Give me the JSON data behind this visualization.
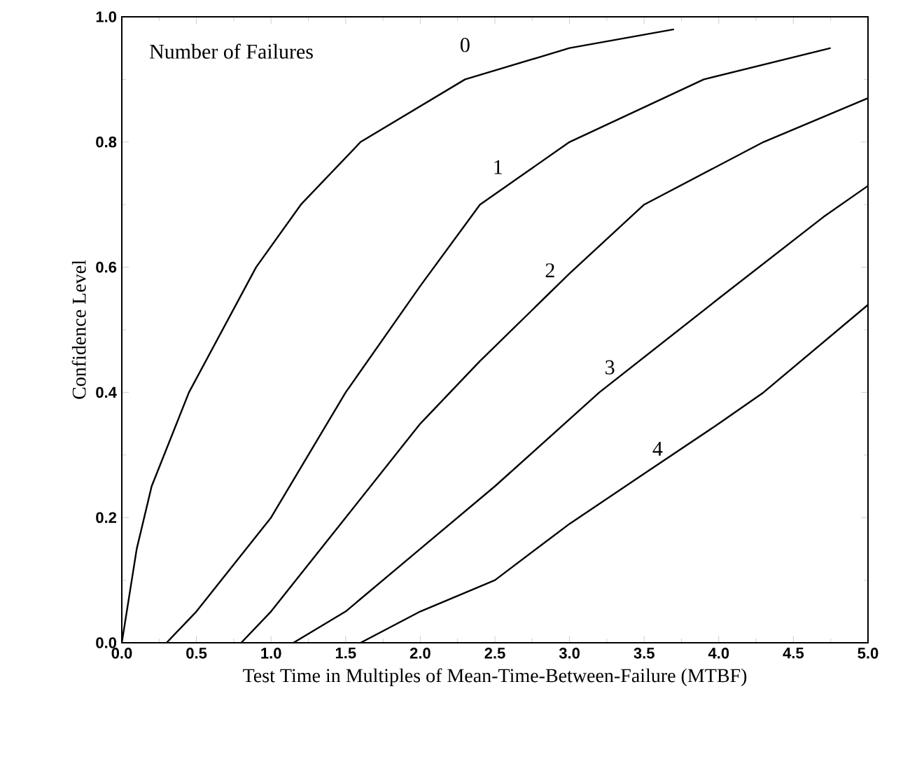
{
  "chart_data": {
    "type": "line",
    "xlabel": "Test Time in Multiples of Mean-Time-Between-Failure (MTBF)",
    "ylabel": "Confidence Level",
    "legend_title": "Number of Failures",
    "xlim": [
      0,
      5
    ],
    "ylim": [
      0,
      1
    ],
    "xticks": [
      {
        "value": 0,
        "label": "0.0"
      },
      {
        "value": 0.5,
        "label": "0.5"
      },
      {
        "value": 1,
        "label": "1.0"
      },
      {
        "value": 1.5,
        "label": "1.5"
      },
      {
        "value": 2,
        "label": "2.0"
      },
      {
        "value": 2.5,
        "label": "2.5"
      },
      {
        "value": 3,
        "label": "3.0"
      },
      {
        "value": 3.5,
        "label": "3.5"
      },
      {
        "value": 4,
        "label": "4.0"
      },
      {
        "value": 4.5,
        "label": "4.5"
      },
      {
        "value": 5,
        "label": "5.0"
      }
    ],
    "yticks": [
      {
        "value": 0,
        "label": "0.0"
      },
      {
        "value": 0.2,
        "label": "0.2"
      },
      {
        "value": 0.4,
        "label": "0.4"
      },
      {
        "value": 0.6,
        "label": "0.6"
      },
      {
        "value": 0.8,
        "label": "0.8"
      },
      {
        "value": 1,
        "label": "1.0"
      }
    ],
    "grid": false,
    "legend": false,
    "marker": "none",
    "line_style": "solid",
    "series": [
      {
        "name": "0",
        "color": "#000000",
        "x": [
          0,
          0.1,
          0.2,
          0.45,
          0.9,
          1.2,
          1.6,
          2.3,
          3.0,
          3.7
        ],
        "values": [
          0,
          0.15,
          0.25,
          0.4,
          0.6,
          0.7,
          0.8,
          0.9,
          0.95,
          0.98
        ]
      },
      {
        "name": "1",
        "color": "#000000",
        "x": [
          0.3,
          0.5,
          1.0,
          1.5,
          2.0,
          2.4,
          3.0,
          3.9,
          4.75
        ],
        "values": [
          0,
          0.05,
          0.2,
          0.4,
          0.57,
          0.7,
          0.8,
          0.9,
          0.95
        ]
      },
      {
        "name": "2",
        "color": "#000000",
        "x": [
          0.8,
          1.0,
          1.5,
          2.0,
          2.4,
          3.0,
          3.5,
          4.3,
          5.0
        ],
        "values": [
          0,
          0.05,
          0.2,
          0.35,
          0.45,
          0.59,
          0.7,
          0.8,
          0.87
        ]
      },
      {
        "name": "3",
        "color": "#000000",
        "x": [
          1.15,
          1.5,
          2.0,
          2.5,
          3.2,
          4.0,
          4.7,
          5.0
        ],
        "values": [
          0,
          0.05,
          0.15,
          0.25,
          0.4,
          0.55,
          0.68,
          0.73
        ]
      },
      {
        "name": "4",
        "color": "#000000",
        "x": [
          1.6,
          2.0,
          2.5,
          3.0,
          3.5,
          4.0,
          4.3,
          5.0
        ],
        "values": [
          0,
          0.05,
          0.1,
          0.19,
          0.27,
          0.35,
          0.4,
          0.54
        ]
      }
    ]
  }
}
